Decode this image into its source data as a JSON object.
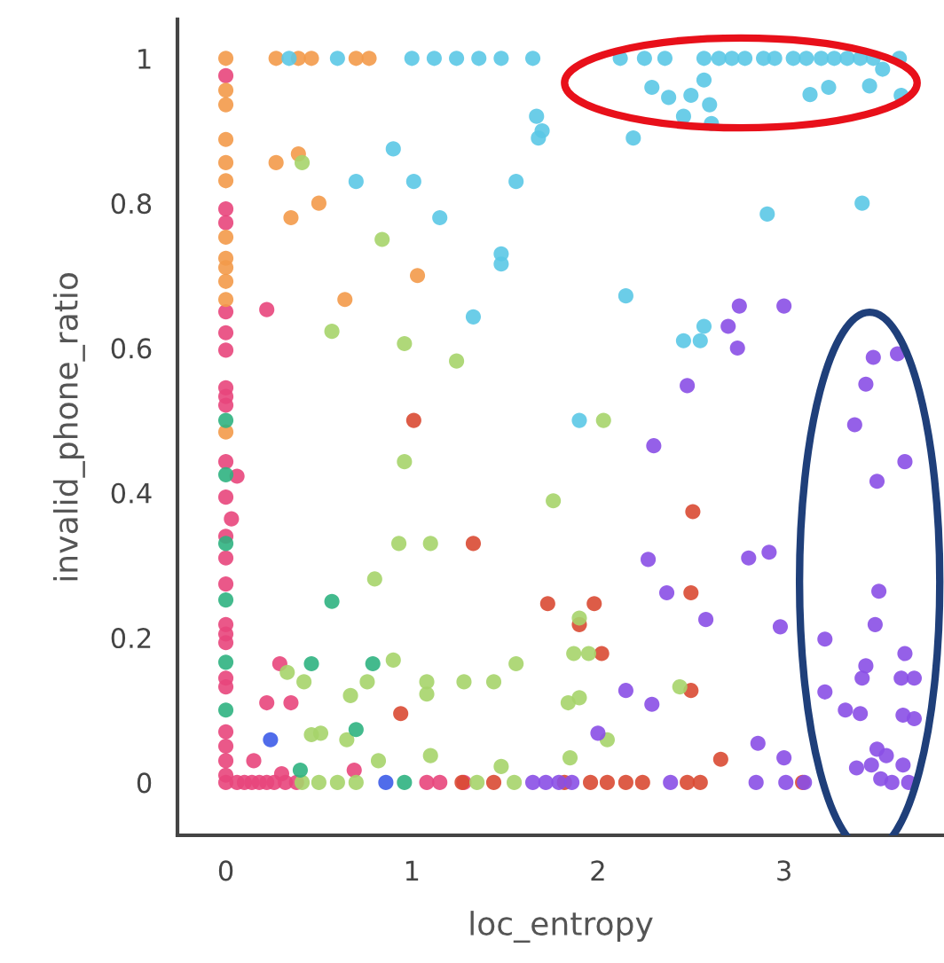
{
  "chart_data": {
    "type": "scatter",
    "xlabel": "loc_entropy",
    "ylabel": "invalid_phone_ratio",
    "xlim": [
      -0.26,
      3.86
    ],
    "ylim": [
      -0.073,
      1.054
    ],
    "xticks": [
      0,
      1,
      2,
      3
    ],
    "yticks": [
      0,
      0.2,
      0.4,
      0.6,
      0.8,
      1
    ],
    "grid": false,
    "legend": false,
    "marker": "circle",
    "series": [
      {
        "color": "#e8467c",
        "x": [
          0,
          0,
          0,
          0,
          0,
          0,
          0,
          0,
          0,
          0,
          0,
          0,
          0,
          0,
          0,
          0,
          0,
          0,
          0,
          0,
          0,
          0,
          0,
          0,
          0.22,
          0.29,
          0.22,
          0.35,
          0.15,
          0.3,
          0.69,
          0.06,
          0.1,
          0.14,
          0.18,
          0.22,
          0.26,
          0.32,
          0.38,
          1.08,
          1.15,
          1.28,
          0.06,
          0.03
        ],
        "values": [
          0.976,
          0.792,
          0.773,
          0.65,
          0.621,
          0.597,
          0.545,
          0.533,
          0.521,
          0.443,
          0.394,
          0.34,
          0.274,
          0.218,
          0.205,
          0.193,
          0.144,
          0.132,
          0.07,
          0.05,
          0.03,
          0.01,
          0,
          0.31,
          0.653,
          0.164,
          0.11,
          0.11,
          0.03,
          0.012,
          0.017,
          0,
          0,
          0,
          0,
          0,
          0,
          0,
          0,
          0,
          0,
          0,
          0.423,
          0.364
        ]
      },
      {
        "color": "#f39a4a",
        "x": [
          0,
          0,
          0,
          0,
          0,
          0,
          0,
          0,
          0,
          0,
          0,
          0,
          0.27,
          0.39,
          0.46,
          0.7,
          0.77,
          0.27,
          0.39,
          0.5,
          0.35,
          1.03,
          0.64
        ],
        "values": [
          1,
          0.956,
          0.936,
          0.888,
          0.856,
          0.831,
          0.753,
          0.724,
          0.711,
          0.692,
          0.667,
          0.484,
          1,
          1,
          1,
          1,
          1,
          0.856,
          0.868,
          0.8,
          0.78,
          0.7,
          0.667
        ]
      },
      {
        "color": "#5bc8e6",
        "x": [
          0.34,
          0.6,
          1.0,
          1.12,
          1.24,
          1.36,
          1.48,
          1.65,
          2.12,
          2.25,
          2.36,
          2.57,
          2.65,
          2.72,
          2.79,
          2.89,
          2.95,
          3.05,
          3.12,
          3.2,
          3.27,
          3.34,
          3.41,
          3.48,
          3.62,
          2.29,
          2.38,
          2.5,
          2.57,
          2.6,
          2.46,
          2.61,
          3.14,
          3.24,
          3.46,
          3.53,
          3.63,
          2.19,
          2.91,
          3.42,
          2.15,
          2.57,
          2.46,
          2.55,
          1.9,
          1.67,
          1.7,
          1.68,
          0.9,
          0.7,
          1.01,
          1.56,
          1.15,
          1.48,
          1.48,
          1.33
        ],
        "values": [
          1,
          1,
          1,
          1,
          1,
          1,
          1,
          1,
          1,
          1,
          1,
          1,
          1,
          1,
          1,
          1,
          1,
          1,
          1,
          1,
          1,
          1,
          1,
          1,
          1,
          0.96,
          0.946,
          0.949,
          0.97,
          0.936,
          0.92,
          0.91,
          0.95,
          0.96,
          0.962,
          0.985,
          0.949,
          0.89,
          0.785,
          0.8,
          0.672,
          0.63,
          0.61,
          0.61,
          0.5,
          0.92,
          0.9,
          0.89,
          0.875,
          0.83,
          0.83,
          0.83,
          0.78,
          0.73,
          0.716,
          0.643
        ]
      },
      {
        "color": "#d94a33",
        "x": [
          1.01,
          1.33,
          1.73,
          0.94,
          2.51,
          1.98,
          2.5,
          1.9,
          2.02,
          2.5,
          2.66,
          1.82,
          1.96,
          2.05,
          2.15,
          2.24,
          2.48,
          2.55,
          3.1,
          1.27,
          1.44
        ],
        "values": [
          0.5,
          0.33,
          0.247,
          0.095,
          0.374,
          0.247,
          0.262,
          0.218,
          0.178,
          0.127,
          0.032,
          0,
          0,
          0,
          0,
          0,
          0,
          0,
          0,
          0,
          0
        ]
      },
      {
        "color": "#a6d46a",
        "x": [
          0.41,
          0.84,
          0.57,
          0.96,
          1.24,
          0.96,
          1.76,
          0.93,
          1.1,
          0.8,
          0.9,
          0.33,
          0.42,
          0.76,
          1.08,
          1.28,
          1.44,
          1.56,
          1.08,
          0.67,
          0.46,
          0.51,
          0.65,
          0.82,
          1.1,
          1.48,
          2.03,
          1.9,
          1.87,
          1.95,
          2.44,
          1.84,
          1.9,
          2.05,
          1.85,
          0.41,
          0.5,
          0.6,
          0.7,
          1.35,
          1.55
        ],
        "values": [
          0.856,
          0.75,
          0.623,
          0.606,
          0.582,
          0.443,
          0.389,
          0.33,
          0.33,
          0.281,
          0.169,
          0.152,
          0.139,
          0.139,
          0.139,
          0.139,
          0.139,
          0.164,
          0.122,
          0.12,
          0.066,
          0.068,
          0.059,
          0.03,
          0.037,
          0.022,
          0.5,
          0.227,
          0.178,
          0.178,
          0.132,
          0.11,
          0.117,
          0.059,
          0.034,
          0,
          0,
          0,
          0,
          0,
          0
        ]
      },
      {
        "color": "#2fb381",
        "x": [
          0,
          0,
          0,
          0,
          0,
          0,
          0.57,
          0.46,
          0.79,
          0.7,
          0.4,
          0.96
        ],
        "values": [
          0.5,
          0.425,
          0.33,
          0.252,
          0.166,
          0.1,
          0.25,
          0.164,
          0.164,
          0.073,
          0.017,
          0
        ]
      },
      {
        "color": "#3d5ce8",
        "x": [
          0.24,
          0.86
        ],
        "values": [
          0.059,
          0
        ]
      },
      {
        "color": "#8a4fe6",
        "x": [
          2.76,
          3.0,
          2.7,
          2.75,
          2.48,
          3.48,
          3.61,
          3.44,
          3.38,
          2.3,
          3.65,
          3.5,
          2.27,
          2.81,
          2.92,
          2.37,
          2.58,
          2.98,
          3.51,
          3.49,
          3.22,
          3.44,
          3.42,
          3.65,
          3.63,
          3.7,
          2.15,
          2.29,
          3.22,
          3.33,
          3.41,
          3.64,
          3.7,
          2.0,
          2.86,
          3.0,
          3.5,
          3.55,
          3.39,
          3.47,
          3.64,
          3.52,
          3.58,
          3.67,
          1.65,
          1.72,
          1.79,
          1.86,
          2.39,
          2.85,
          3.01,
          3.11
        ],
        "values": [
          0.658,
          0.658,
          0.63,
          0.6,
          0.548,
          0.587,
          0.592,
          0.55,
          0.494,
          0.465,
          0.443,
          0.416,
          0.308,
          0.31,
          0.318,
          0.262,
          0.225,
          0.215,
          0.264,
          0.218,
          0.198,
          0.161,
          0.144,
          0.178,
          0.144,
          0.144,
          0.127,
          0.108,
          0.125,
          0.1,
          0.095,
          0.093,
          0.088,
          0.068,
          0.054,
          0.034,
          0.046,
          0.037,
          0.02,
          0.024,
          0.024,
          0.005,
          0,
          0,
          0,
          0,
          0,
          0,
          0,
          0,
          0,
          0
        ]
      }
    ]
  }
}
